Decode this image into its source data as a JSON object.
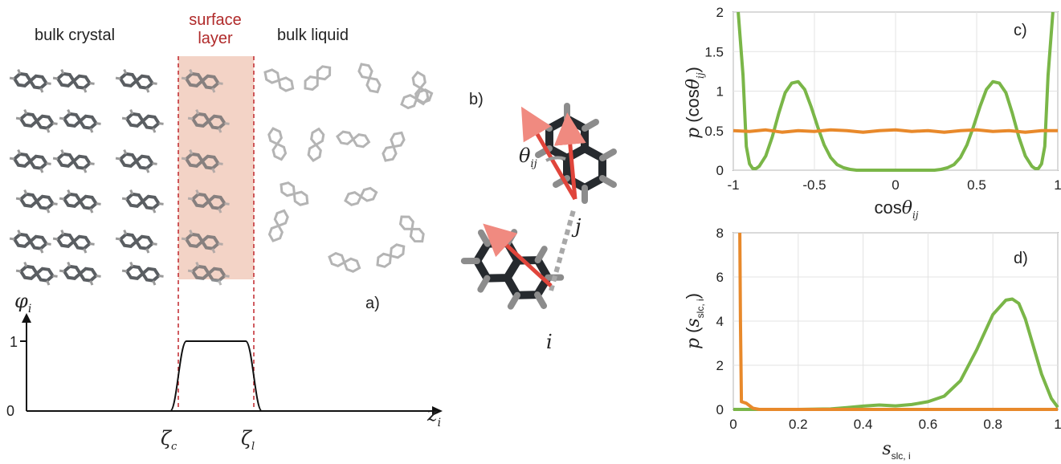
{
  "panel_a": {
    "label_crystal": "bulk crystal",
    "label_surface_1": "surface",
    "label_surface_2": "layer",
    "label_liquid": "bulk liquid",
    "panel_letter": "a)",
    "phi_symbol": "φ",
    "phi_sub": "i",
    "tick_one": "1",
    "tick_zero": "0",
    "z_symbol": "z",
    "z_sub": "i",
    "zeta_symbol": "ζ",
    "zeta_c_sub": "c",
    "zeta_l_sub": "l",
    "colors": {
      "surface_highlight": "#f3d3c6",
      "surface_text": "#b02a2a",
      "dashed_line": "#c0272d"
    }
  },
  "panel_b": {
    "panel_letter": "b)",
    "theta_symbol": "θ",
    "theta_sub": "ij",
    "label_i": "i",
    "label_j": "j",
    "colors": {
      "molecule": "#262a2e",
      "hydrogen": "#8c8c8c",
      "vector": "#e0453b"
    }
  },
  "chart_data": [
    {
      "type": "line",
      "panel": "c)",
      "xlabel": "cos θ_ij",
      "ylabel": "p (cos θ_ij)",
      "xlim": [
        -1,
        1
      ],
      "ylim": [
        0,
        2
      ],
      "xticks": [
        "-1",
        "-0.5",
        "0",
        "0.5",
        "1"
      ],
      "yticks": [
        "0",
        "0.5",
        "1",
        "1.5",
        "2"
      ],
      "grid": true,
      "series": [
        {
          "color": "#7ab648",
          "x": [
            -0.97,
            -0.94,
            -0.92,
            -0.9,
            -0.88,
            -0.86,
            -0.84,
            -0.8,
            -0.76,
            -0.72,
            -0.68,
            -0.64,
            -0.6,
            -0.56,
            -0.52,
            -0.48,
            -0.44,
            -0.4,
            -0.36,
            -0.32,
            -0.28,
            -0.24,
            -0.2,
            0,
            0.2,
            0.24,
            0.28,
            0.32,
            0.36,
            0.4,
            0.44,
            0.48,
            0.52,
            0.56,
            0.6,
            0.64,
            0.68,
            0.72,
            0.76,
            0.8,
            0.84,
            0.86,
            0.88,
            0.9,
            0.92,
            0.94,
            0.97
          ],
          "y": [
            2.0,
            1.2,
            0.3,
            0.08,
            0.02,
            0.02,
            0.05,
            0.18,
            0.42,
            0.72,
            0.98,
            1.1,
            1.12,
            1.02,
            0.8,
            0.55,
            0.32,
            0.16,
            0.07,
            0.03,
            0.01,
            0.0,
            0.0,
            0.0,
            0.0,
            0.0,
            0.01,
            0.03,
            0.07,
            0.16,
            0.32,
            0.55,
            0.8,
            1.02,
            1.12,
            1.1,
            0.98,
            0.72,
            0.42,
            0.18,
            0.05,
            0.02,
            0.02,
            0.08,
            0.3,
            1.2,
            2.0
          ]
        },
        {
          "color": "#e8892b",
          "x": [
            -1,
            -0.9,
            -0.8,
            -0.7,
            -0.6,
            -0.5,
            -0.4,
            -0.3,
            -0.2,
            -0.1,
            0,
            0.1,
            0.2,
            0.3,
            0.4,
            0.5,
            0.6,
            0.7,
            0.8,
            0.9,
            1
          ],
          "y": [
            0.5,
            0.49,
            0.51,
            0.48,
            0.5,
            0.49,
            0.51,
            0.5,
            0.48,
            0.5,
            0.51,
            0.49,
            0.5,
            0.48,
            0.5,
            0.51,
            0.49,
            0.5,
            0.48,
            0.5,
            0.5
          ]
        }
      ]
    },
    {
      "type": "line",
      "panel": "d)",
      "xlabel": "s_slc,i",
      "ylabel": "p (s_slc,i)",
      "xlim": [
        0,
        1
      ],
      "ylim": [
        0,
        8
      ],
      "xticks": [
        "0",
        "0.2",
        "0.4",
        "0.6",
        "0.8",
        "1"
      ],
      "yticks": [
        "0",
        "2",
        "4",
        "6",
        "8"
      ],
      "grid": true,
      "series": [
        {
          "color": "#7ab648",
          "x": [
            0,
            0.1,
            0.2,
            0.3,
            0.35,
            0.4,
            0.45,
            0.5,
            0.55,
            0.6,
            0.65,
            0.7,
            0.75,
            0.8,
            0.84,
            0.86,
            0.88,
            0.9,
            0.92,
            0.95,
            0.98,
            1.0
          ],
          "y": [
            0,
            0,
            0,
            0.02,
            0.08,
            0.15,
            0.2,
            0.16,
            0.22,
            0.35,
            0.6,
            1.3,
            2.7,
            4.3,
            4.95,
            5.0,
            4.8,
            4.1,
            3.1,
            1.6,
            0.5,
            0.1
          ]
        },
        {
          "color": "#e8892b",
          "x": [
            0.02,
            0.022,
            0.025,
            0.04,
            0.06,
            0.08,
            0.1,
            0.3,
            0.6,
            1.0
          ],
          "y": [
            8.0,
            4.0,
            0.35,
            0.28,
            0.06,
            0.0,
            0.0,
            0.0,
            0.0,
            0.0
          ]
        }
      ]
    }
  ],
  "chart_text": {
    "c": {
      "panel": "c)",
      "ylabel_p": "p",
      "ylabel_open": "(cos",
      "ylabel_theta": "θ",
      "ylabel_sub": "ij",
      "ylabel_close": ")",
      "xlabel_cos": "cos",
      "xlabel_theta": "θ",
      "xlabel_sub": "ij"
    },
    "d": {
      "panel": "d)",
      "ylabel_p": "p",
      "ylabel_open": "(",
      "ylabel_s": "s",
      "ylabel_sub": "slc, i",
      "ylabel_close": ")",
      "xlabel_s": "s",
      "xlabel_sub": "slc, i"
    }
  }
}
